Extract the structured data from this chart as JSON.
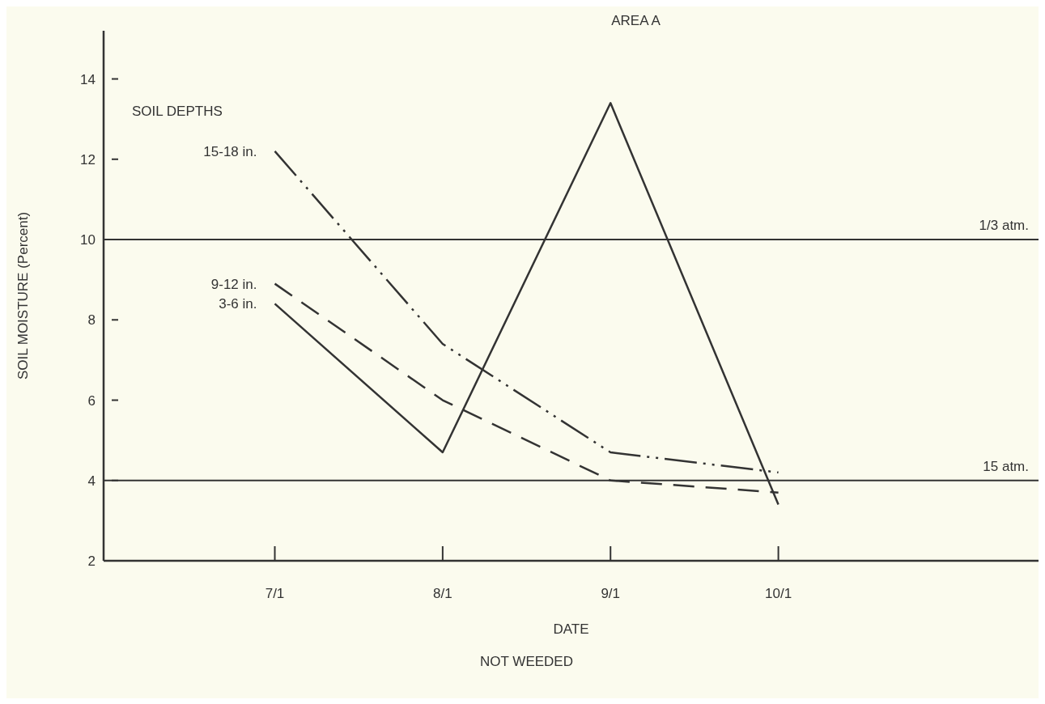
{
  "chart_data": {
    "type": "line",
    "title": "AREA A",
    "xlabel": "DATE",
    "ylabel": "SOIL MOISTURE  (Percent)",
    "legend_title": "SOIL DEPTHS",
    "annotations": [
      "NOT WEEDED"
    ],
    "categories": [
      "7/1",
      "8/1",
      "9/1",
      "10/1"
    ],
    "series": [
      {
        "name": "15-18  in.",
        "color": "#333333",
        "line_style": "dotted",
        "values": [
          12.2,
          7.4,
          4.7,
          4.2
        ]
      },
      {
        "name": "9-12  in.",
        "color": "#333333",
        "line_style": "dashed",
        "values": [
          8.9,
          6.0,
          4.0,
          3.7
        ]
      },
      {
        "name": "3-6  in.",
        "color": "#333333",
        "line_style": "solid",
        "values": [
          8.4,
          4.7,
          13.4,
          3.4
        ]
      }
    ],
    "ylim": [
      2,
      15.2
    ],
    "yticks": [
      2,
      4,
      6,
      8,
      10,
      12,
      14
    ],
    "grid": false,
    "legend": false,
    "marker": "none",
    "ref_lines": [
      {
        "axis": "y",
        "value": 10,
        "label": "1/3  atm.",
        "color": "#333333"
      },
      {
        "axis": "y",
        "value": 4,
        "label": "15  atm.",
        "color": "#333333"
      }
    ]
  }
}
